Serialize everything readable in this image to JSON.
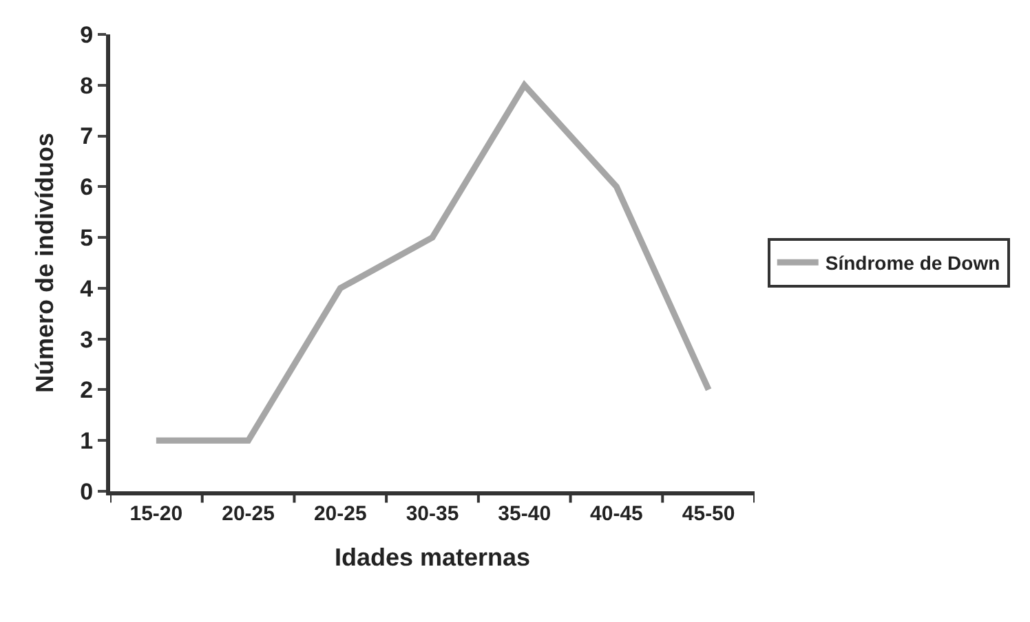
{
  "chart_data": {
    "type": "line",
    "xlabel": "Idades maternas",
    "ylabel": "Número de indivíduos",
    "categories": [
      "15-20",
      "20-25",
      "20-25",
      "30-35",
      "35-40",
      "40-45",
      "45-50"
    ],
    "series": [
      {
        "name": "Síndrome de Down",
        "color": "#a6a6a6",
        "values": [
          1,
          1,
          4,
          5,
          8,
          6,
          2
        ]
      }
    ],
    "ylim": [
      0,
      9
    ],
    "yticks": [
      0,
      1,
      2,
      3,
      4,
      5,
      6,
      7,
      8,
      9
    ],
    "legend": "right",
    "marker": "none",
    "line_style": "solid"
  }
}
